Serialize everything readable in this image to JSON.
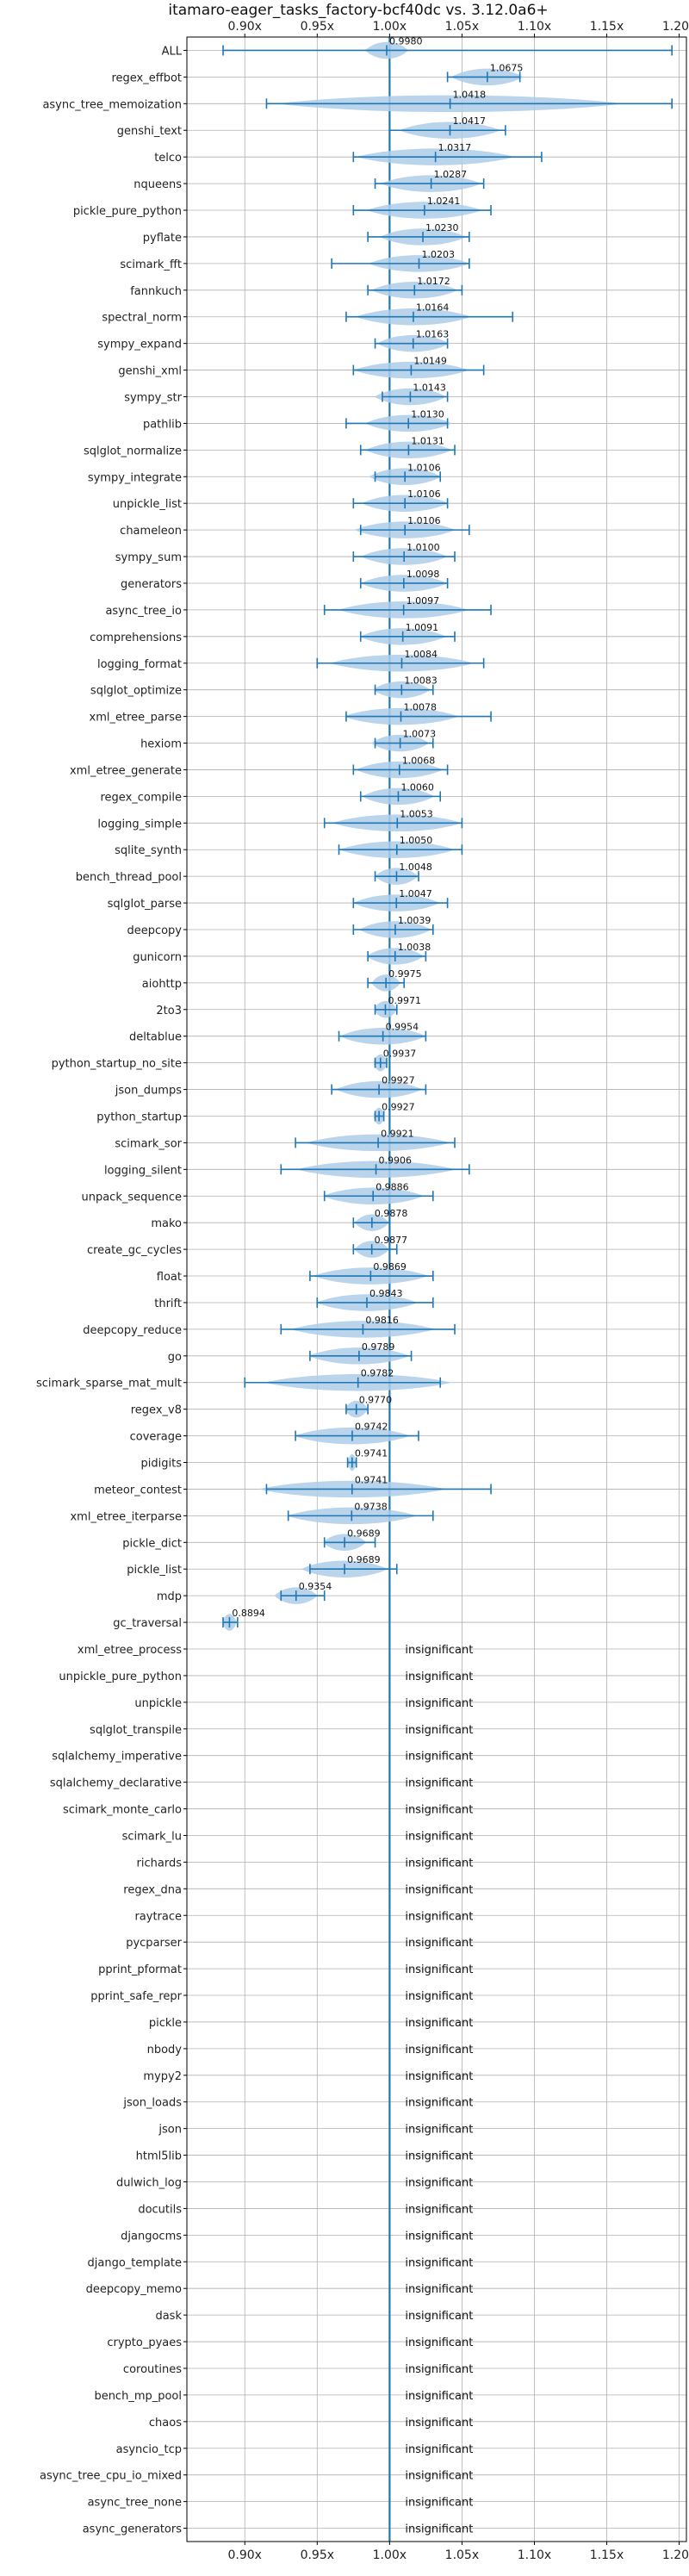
{
  "chart_data": {
    "type": "violin",
    "title": "itamaro-eager_tasks_factory-bcf40dc vs. 3.12.0a6+",
    "xlim": [
      0.86,
      1.205
    ],
    "x_ticks": [
      0.9,
      0.95,
      1.0,
      1.05,
      1.1,
      1.15,
      1.2
    ],
    "x_tick_labels": [
      "0.90x",
      "0.95x",
      "1.00x",
      "1.05x",
      "1.10x",
      "1.15x",
      "1.20x"
    ],
    "reference_line": 1.0,
    "grid": true,
    "colors": {
      "violin": "#aecde8",
      "accent": "#1f77b4",
      "grid": "#b0b0b0",
      "axis": "#000000"
    },
    "insignificant_label": "insignificant",
    "rows": [
      {
        "name": "ALL",
        "value": 0.998,
        "label": "0.9980",
        "min": 0.885,
        "max": 1.195,
        "spread": 0.015
      },
      {
        "name": "regex_effbot",
        "value": 1.0675,
        "label": "1.0675",
        "min": 1.04,
        "max": 1.09,
        "spread": 0.025
      },
      {
        "name": "async_tree_memoization",
        "value": 1.0418,
        "label": "1.0418",
        "min": 0.915,
        "max": 1.195,
        "spread": 0.12
      },
      {
        "name": "genshi_text",
        "value": 1.0417,
        "label": "1.0417",
        "min": 1.0,
        "max": 1.08,
        "spread": 0.035
      },
      {
        "name": "telco",
        "value": 1.0317,
        "label": "1.0317",
        "min": 0.975,
        "max": 1.105,
        "spread": 0.055
      },
      {
        "name": "nqueens",
        "value": 1.0287,
        "label": "1.0287",
        "min": 0.99,
        "max": 1.065,
        "spread": 0.035
      },
      {
        "name": "pickle_pure_python",
        "value": 1.0241,
        "label": "1.0241",
        "min": 0.975,
        "max": 1.07,
        "spread": 0.04
      },
      {
        "name": "pyflate",
        "value": 1.023,
        "label": "1.0230",
        "min": 0.985,
        "max": 1.055,
        "spread": 0.03
      },
      {
        "name": "scimark_fft",
        "value": 1.0203,
        "label": "1.0203",
        "min": 0.96,
        "max": 1.055,
        "spread": 0.035
      },
      {
        "name": "fannkuch",
        "value": 1.0172,
        "label": "1.0172",
        "min": 0.985,
        "max": 1.05,
        "spread": 0.03
      },
      {
        "name": "spectral_norm",
        "value": 1.0164,
        "label": "1.0164",
        "min": 0.97,
        "max": 1.085,
        "spread": 0.04
      },
      {
        "name": "sympy_expand",
        "value": 1.0163,
        "label": "1.0163",
        "min": 0.99,
        "max": 1.04,
        "spread": 0.025
      },
      {
        "name": "genshi_xml",
        "value": 1.0149,
        "label": "1.0149",
        "min": 0.975,
        "max": 1.065,
        "spread": 0.04
      },
      {
        "name": "sympy_str",
        "value": 1.0143,
        "label": "1.0143",
        "min": 0.995,
        "max": 1.04,
        "spread": 0.025
      },
      {
        "name": "pathlib",
        "value": 1.013,
        "label": "1.0130",
        "min": 0.97,
        "max": 1.04,
        "spread": 0.03
      },
      {
        "name": "sqlglot_normalize",
        "value": 1.0131,
        "label": "1.0131",
        "min": 0.98,
        "max": 1.045,
        "spread": 0.03
      },
      {
        "name": "sympy_integrate",
        "value": 1.0106,
        "label": "1.0106",
        "min": 0.99,
        "max": 1.035,
        "spread": 0.025
      },
      {
        "name": "unpickle_list",
        "value": 1.0106,
        "label": "1.0106",
        "min": 0.975,
        "max": 1.04,
        "spread": 0.03
      },
      {
        "name": "chameleon",
        "value": 1.0106,
        "label": "1.0106",
        "min": 0.98,
        "max": 1.055,
        "spread": 0.035
      },
      {
        "name": "sympy_sum",
        "value": 1.01,
        "label": "1.0100",
        "min": 0.975,
        "max": 1.045,
        "spread": 0.03
      },
      {
        "name": "generators",
        "value": 1.0098,
        "label": "1.0098",
        "min": 0.98,
        "max": 1.04,
        "spread": 0.03
      },
      {
        "name": "async_tree_io",
        "value": 1.0097,
        "label": "1.0097",
        "min": 0.955,
        "max": 1.07,
        "spread": 0.045
      },
      {
        "name": "comprehensions",
        "value": 1.0091,
        "label": "1.0091",
        "min": 0.98,
        "max": 1.045,
        "spread": 0.03
      },
      {
        "name": "logging_format",
        "value": 1.0084,
        "label": "1.0084",
        "min": 0.95,
        "max": 1.065,
        "spread": 0.05
      },
      {
        "name": "sqlglot_optimize",
        "value": 1.0083,
        "label": "1.0083",
        "min": 0.99,
        "max": 1.03,
        "spread": 0.02
      },
      {
        "name": "xml_etree_parse",
        "value": 1.0078,
        "label": "1.0078",
        "min": 0.97,
        "max": 1.07,
        "spread": 0.04
      },
      {
        "name": "hexiom",
        "value": 1.0073,
        "label": "1.0073",
        "min": 0.99,
        "max": 1.03,
        "spread": 0.02
      },
      {
        "name": "xml_etree_generate",
        "value": 1.0068,
        "label": "1.0068",
        "min": 0.975,
        "max": 1.04,
        "spread": 0.03
      },
      {
        "name": "regex_compile",
        "value": 1.006,
        "label": "1.0060",
        "min": 0.98,
        "max": 1.035,
        "spread": 0.025
      },
      {
        "name": "logging_simple",
        "value": 1.0053,
        "label": "1.0053",
        "min": 0.955,
        "max": 1.05,
        "spread": 0.045
      },
      {
        "name": "sqlite_synth",
        "value": 1.005,
        "label": "1.0050",
        "min": 0.965,
        "max": 1.05,
        "spread": 0.04
      },
      {
        "name": "bench_thread_pool",
        "value": 1.0048,
        "label": "1.0048",
        "min": 0.99,
        "max": 1.02,
        "spread": 0.015
      },
      {
        "name": "sqlglot_parse",
        "value": 1.0047,
        "label": "1.0047",
        "min": 0.975,
        "max": 1.04,
        "spread": 0.03
      },
      {
        "name": "deepcopy",
        "value": 1.0039,
        "label": "1.0039",
        "min": 0.975,
        "max": 1.03,
        "spread": 0.025
      },
      {
        "name": "gunicorn",
        "value": 1.0038,
        "label": "1.0038",
        "min": 0.985,
        "max": 1.025,
        "spread": 0.02
      },
      {
        "name": "aiohttp",
        "value": 0.9975,
        "label": "0.9975",
        "min": 0.985,
        "max": 1.01,
        "spread": 0.01
      },
      {
        "name": "2to3",
        "value": 0.9971,
        "label": "0.9971",
        "min": 0.99,
        "max": 1.005,
        "spread": 0.008
      },
      {
        "name": "deltablue",
        "value": 0.9954,
        "label": "0.9954",
        "min": 0.965,
        "max": 1.025,
        "spread": 0.03
      },
      {
        "name": "python_startup_no_site",
        "value": 0.9937,
        "label": "0.9937",
        "min": 0.99,
        "max": 0.998,
        "spread": 0.005
      },
      {
        "name": "json_dumps",
        "value": 0.9927,
        "label": "0.9927",
        "min": 0.96,
        "max": 1.025,
        "spread": 0.03
      },
      {
        "name": "python_startup",
        "value": 0.9927,
        "label": "0.9927",
        "min": 0.99,
        "max": 0.996,
        "spread": 0.004
      },
      {
        "name": "scimark_sor",
        "value": 0.9921,
        "label": "0.9921",
        "min": 0.935,
        "max": 1.045,
        "spread": 0.05
      },
      {
        "name": "logging_silent",
        "value": 0.9906,
        "label": "0.9906",
        "min": 0.925,
        "max": 1.055,
        "spread": 0.055
      },
      {
        "name": "unpack_sequence",
        "value": 0.9886,
        "label": "0.9886",
        "min": 0.955,
        "max": 1.03,
        "spread": 0.035
      },
      {
        "name": "mako",
        "value": 0.9878,
        "label": "0.9878",
        "min": 0.975,
        "max": 1.0,
        "spread": 0.012
      },
      {
        "name": "create_gc_cycles",
        "value": 0.9877,
        "label": "0.9877",
        "min": 0.975,
        "max": 1.005,
        "spread": 0.012
      },
      {
        "name": "float",
        "value": 0.9869,
        "label": "0.9869",
        "min": 0.945,
        "max": 1.03,
        "spread": 0.04
      },
      {
        "name": "thrift",
        "value": 0.9843,
        "label": "0.9843",
        "min": 0.95,
        "max": 1.03,
        "spread": 0.035
      },
      {
        "name": "deepcopy_reduce",
        "value": 0.9816,
        "label": "0.9816",
        "min": 0.925,
        "max": 1.045,
        "spread": 0.05
      },
      {
        "name": "go",
        "value": 0.9789,
        "label": "0.9789",
        "min": 0.945,
        "max": 1.015,
        "spread": 0.035
      },
      {
        "name": "scimark_sparse_mat_mult",
        "value": 0.9782,
        "label": "0.9782",
        "min": 0.9,
        "max": 1.035,
        "spread": 0.065
      },
      {
        "name": "regex_v8",
        "value": 0.977,
        "label": "0.9770",
        "min": 0.97,
        "max": 0.985,
        "spread": 0.008
      },
      {
        "name": "coverage",
        "value": 0.9742,
        "label": "0.9742",
        "min": 0.935,
        "max": 1.02,
        "spread": 0.04
      },
      {
        "name": "pidigits",
        "value": 0.9741,
        "label": "0.9741",
        "min": 0.971,
        "max": 0.977,
        "spread": 0.003
      },
      {
        "name": "meteor_contest",
        "value": 0.9741,
        "label": "0.9741",
        "min": 0.915,
        "max": 1.07,
        "spread": 0.065
      },
      {
        "name": "xml_etree_iterparse",
        "value": 0.9738,
        "label": "0.9738",
        "min": 0.93,
        "max": 1.03,
        "spread": 0.045
      },
      {
        "name": "pickle_dict",
        "value": 0.9689,
        "label": "0.9689",
        "min": 0.955,
        "max": 0.99,
        "spread": 0.015
      },
      {
        "name": "pickle_list",
        "value": 0.9689,
        "label": "0.9689",
        "min": 0.945,
        "max": 1.005,
        "spread": 0.03
      },
      {
        "name": "mdp",
        "value": 0.9354,
        "label": "0.9354",
        "min": 0.925,
        "max": 0.955,
        "spread": 0.015
      },
      {
        "name": "gc_traversal",
        "value": 0.8894,
        "label": "0.8894",
        "min": 0.885,
        "max": 0.895,
        "spread": 0.005
      },
      {
        "name": "xml_etree_process",
        "value": null,
        "label": ""
      },
      {
        "name": "unpickle_pure_python",
        "value": null,
        "label": ""
      },
      {
        "name": "unpickle",
        "value": null,
        "label": ""
      },
      {
        "name": "sqlglot_transpile",
        "value": null,
        "label": ""
      },
      {
        "name": "sqlalchemy_imperative",
        "value": null,
        "label": ""
      },
      {
        "name": "sqlalchemy_declarative",
        "value": null,
        "label": ""
      },
      {
        "name": "scimark_monte_carlo",
        "value": null,
        "label": ""
      },
      {
        "name": "scimark_lu",
        "value": null,
        "label": ""
      },
      {
        "name": "richards",
        "value": null,
        "label": ""
      },
      {
        "name": "regex_dna",
        "value": null,
        "label": ""
      },
      {
        "name": "raytrace",
        "value": null,
        "label": ""
      },
      {
        "name": "pycparser",
        "value": null,
        "label": ""
      },
      {
        "name": "pprint_pformat",
        "value": null,
        "label": ""
      },
      {
        "name": "pprint_safe_repr",
        "value": null,
        "label": ""
      },
      {
        "name": "pickle",
        "value": null,
        "label": ""
      },
      {
        "name": "nbody",
        "value": null,
        "label": ""
      },
      {
        "name": "mypy2",
        "value": null,
        "label": ""
      },
      {
        "name": "json_loads",
        "value": null,
        "label": ""
      },
      {
        "name": "json",
        "value": null,
        "label": ""
      },
      {
        "name": "html5lib",
        "value": null,
        "label": ""
      },
      {
        "name": "dulwich_log",
        "value": null,
        "label": ""
      },
      {
        "name": "docutils",
        "value": null,
        "label": ""
      },
      {
        "name": "djangocms",
        "value": null,
        "label": ""
      },
      {
        "name": "django_template",
        "value": null,
        "label": ""
      },
      {
        "name": "deepcopy_memo",
        "value": null,
        "label": ""
      },
      {
        "name": "dask",
        "value": null,
        "label": ""
      },
      {
        "name": "crypto_pyaes",
        "value": null,
        "label": ""
      },
      {
        "name": "coroutines",
        "value": null,
        "label": ""
      },
      {
        "name": "bench_mp_pool",
        "value": null,
        "label": ""
      },
      {
        "name": "chaos",
        "value": null,
        "label": ""
      },
      {
        "name": "asyncio_tcp",
        "value": null,
        "label": ""
      },
      {
        "name": "async_tree_cpu_io_mixed",
        "value": null,
        "label": ""
      },
      {
        "name": "async_tree_none",
        "value": null,
        "label": ""
      },
      {
        "name": "async_generators",
        "value": null,
        "label": ""
      }
    ]
  }
}
